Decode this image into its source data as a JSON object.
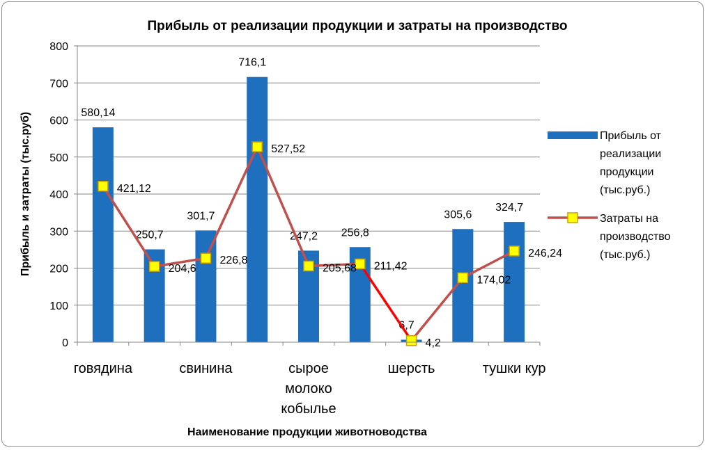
{
  "chart_data": {
    "type": "bar",
    "title": "Прибыль от реализации продукции и затраты на производство",
    "xlabel": "Наименование продукции животноводства",
    "ylabel": "Прибыль и затраты (тыс.руб)",
    "ylim": [
      0,
      800
    ],
    "yticks": [
      "0",
      "100",
      "200",
      "300",
      "400",
      "500",
      "600",
      "700",
      "800"
    ],
    "grid": true,
    "legend_position": "right",
    "category_labels": [
      [
        "говядина"
      ],
      [
        "свинина"
      ],
      [
        "сырое",
        "молоко",
        "кобылье"
      ],
      [
        "шерсть"
      ],
      [
        "тушки кур"
      ]
    ],
    "category_count": 9,
    "category_label_slots": [
      0,
      2,
      4,
      6,
      8
    ],
    "series": [
      {
        "name": "Прибыль от реализации продукции (тыс.руб.)",
        "legend_lines": [
          "Прибыль от",
          "реализации",
          "продукции",
          "(тыс.руб.)"
        ],
        "type": "bar",
        "color": "#1f6fbf",
        "values": [
          580.14,
          250.7,
          301.7,
          716.1,
          247.2,
          256.8,
          6.7,
          305.6,
          324.7
        ],
        "labels": [
          "580,14",
          "250,7",
          "301,7",
          "716,1",
          "247,2",
          "256,8",
          "6,7",
          "305,6",
          "324,7"
        ]
      },
      {
        "name": "Затраты на производство (тыс.руб.)",
        "legend_lines": [
          "Затраты на",
          "производство",
          "(тыс.руб.)"
        ],
        "type": "line",
        "color": "#c0504d",
        "highlight_color": "#ff0000",
        "marker_fill": "#ffff00",
        "marker_stroke": "#c8a000",
        "values": [
          421.12,
          204.6,
          226.8,
          527.52,
          205.68,
          211.42,
          4.2,
          174.02,
          246.24
        ],
        "labels": [
          "421,12",
          "204,6",
          "226,8",
          "527,52",
          "205,68",
          "211,42",
          "4,2",
          "174,02",
          "246,24"
        ]
      }
    ]
  }
}
